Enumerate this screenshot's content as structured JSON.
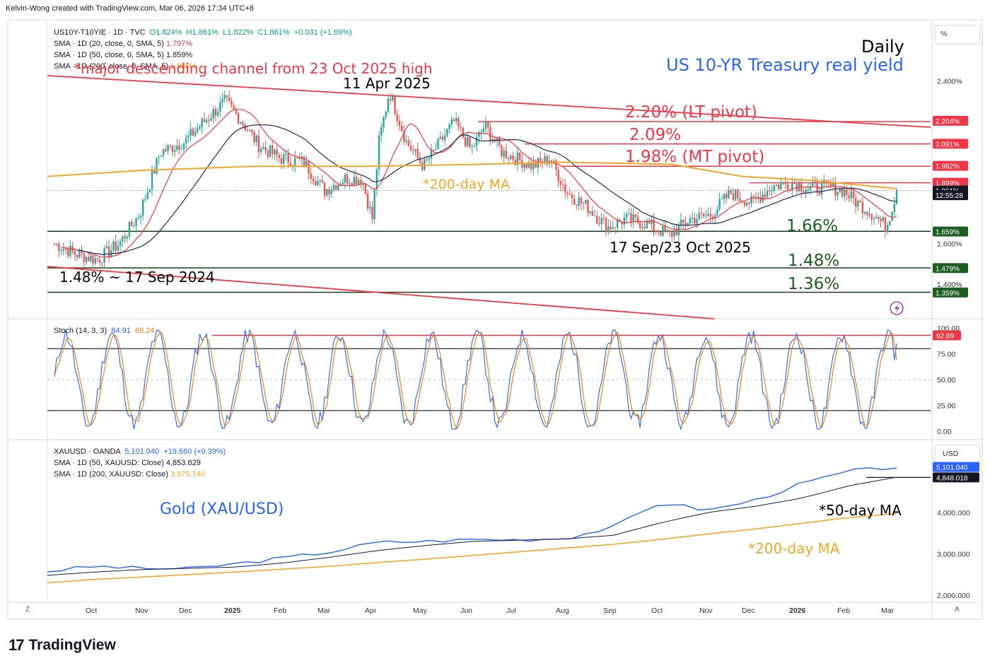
{
  "header": {
    "credit": "Kelvin-Wong created with TradingView.com, Mar 06, 2026 17:34 UTC+8"
  },
  "branding": {
    "logo_text": "TradingView"
  },
  "colors": {
    "red": "#f23645",
    "green": "#1b5e20",
    "blue": "#2962ff",
    "orange": "#f5a623",
    "navy": "#131a4a",
    "candle_up": "#26a69a",
    "candle_down": "#ef5350"
  },
  "main_pane": {
    "legend": {
      "symbol": "US10Y-T10YIE · 1D · TVC",
      "o": "O1.824%",
      "h": "H1.861%",
      "l": "L1.822%",
      "c": "C1.861%",
      "chg": "+0.031 (+1.69%)",
      "sma20_label": "SMA · 1D (20, close, 0, SMA, 5)",
      "sma20_value": "1.797%",
      "sma50_label": "SMA · 1D (50, close, 0, SMA, 5)",
      "sma50_value": "1.859%",
      "sma200_label": "SMA · 1D (200, close, 0, SMA, 5)",
      "sma200_value": "1.868%"
    },
    "unit_label": "%",
    "axis_ticks": [
      "2.400%",
      "1.600%",
      "1.400%"
    ],
    "price_tags": [
      {
        "label": "2.204%",
        "value": 2.204,
        "kind": "red"
      },
      {
        "label": "2.091%",
        "value": 2.091,
        "kind": "red"
      },
      {
        "label": "1.982%",
        "value": 1.982,
        "kind": "red"
      },
      {
        "label": "1.899%",
        "value": 1.899,
        "kind": "red"
      },
      {
        "label": "1.861%",
        "value": 1.861,
        "kind": "dark"
      },
      {
        "label": "12:55:28",
        "value": 1.838,
        "kind": "dark"
      },
      {
        "label": "1.659%",
        "value": 1.659,
        "kind": "green"
      },
      {
        "label": "1.479%",
        "value": 1.479,
        "kind": "green"
      },
      {
        "label": "1.359%",
        "value": 1.359,
        "kind": "green"
      }
    ],
    "annotations": {
      "daily": "Daily",
      "title": "US 10-YR Treasury real yield",
      "channel": "*major descending channel from 23 Oct 2025 high",
      "apr_high": "11 Apr 2025",
      "lt_pivot": "2.20% (LT pivot)",
      "r209": "2.09%",
      "mt_pivot": "1.98% (MT pivot)",
      "ma200": "*200-day MA",
      "s166": "1.66%",
      "sep_oct": "17 Sep/23 Oct 2025",
      "s148": "1.48%",
      "sep2024": "1.48%  ~ 17 Sep 2024",
      "s136": "1.36%"
    }
  },
  "stoch_pane": {
    "legend": {
      "label": "Stoch (14, 3, 3)",
      "k": "84.91",
      "d": "69.24"
    },
    "axis_ticks": [
      "100.00",
      "75.00",
      "50.00",
      "25.00",
      "0.00"
    ],
    "tag": "92.89"
  },
  "gold_pane": {
    "legend": {
      "symbol": "XAUUSD · OANDA",
      "price": "5,101.040",
      "chg": "+19.660 (+0.39%)",
      "sma50_label": "SMA · 1D (50, XAUUSD: Close)",
      "sma50_value": "4,853.829",
      "sma200_label": "SMA · 1D (200, XAUUSD: Close)",
      "sma200_value": "3,975.140"
    },
    "unit_label": "USD",
    "axis_ticks": [
      "4,000.000",
      "3,000.000",
      "2,000.000"
    ],
    "price_tags": [
      {
        "label": "5,101.040",
        "kind": "blue"
      },
      {
        "label": "4,848.018",
        "kind": "dark"
      }
    ],
    "annotations": {
      "title": "Gold (XAU/USD)",
      "ma50": "*50-day MA",
      "ma200": "*200-day MA"
    }
  },
  "time_axis": [
    "Oct",
    "Nov",
    "Dec",
    "2025",
    "Feb",
    "Mar",
    "Apr",
    "May",
    "Jun",
    "Jul",
    "Aug",
    "Sep",
    "Oct",
    "Nov",
    "Dec",
    "2026",
    "Feb",
    "Mar"
  ],
  "axis_buttons": {
    "left": "Z",
    "right": "A"
  },
  "chart_data": [
    {
      "type": "line",
      "title": "US 10-YR Treasury real yield",
      "unit": "%",
      "x": [
        "2024-09",
        "2024-10",
        "2024-11",
        "2024-12",
        "2025-01",
        "2025-02",
        "2025-03",
        "2025-04",
        "2025-05",
        "2025-06",
        "2025-07",
        "2025-08",
        "2025-09",
        "2025-10",
        "2025-11",
        "2025-12",
        "2026-01",
        "2026-02",
        "2026-03"
      ],
      "series": [
        {
          "values": [
            1.57,
            1.62,
            2.05,
            2.12,
            2.28,
            2.13,
            1.92,
            2.1,
            2.05,
            2.18,
            2.02,
            1.98,
            1.75,
            1.69,
            1.78,
            1.88,
            1.9,
            1.8,
            1.861
          ]
        }
      ],
      "horizontal_levels": [
        2.2,
        2.09,
        1.98,
        1.66,
        1.48,
        1.36
      ]
    },
    {
      "type": "line",
      "title": "Stoch (14, 3, 3)",
      "ylim": [
        0,
        100
      ],
      "levels": [
        80,
        50,
        20
      ],
      "last": {
        "k": 84.91,
        "d": 69.24
      }
    },
    {
      "type": "line",
      "title": "Gold (XAU/USD)",
      "x": [
        "2024-09",
        "2024-10",
        "2024-11",
        "2024-12",
        "2025-01",
        "2025-02",
        "2025-03",
        "2025-04",
        "2025-05",
        "2025-06",
        "2025-07",
        "2025-08",
        "2025-09",
        "2025-10",
        "2025-11",
        "2025-12",
        "2026-01",
        "2026-02",
        "2026-03"
      ],
      "series": [
        {
          "name": "XAUUSD",
          "values": [
            2580,
            2700,
            2650,
            2640,
            2760,
            2900,
            3050,
            3280,
            3300,
            3350,
            3340,
            3380,
            3650,
            4250,
            4050,
            4300,
            4700,
            5000,
            5101
          ]
        },
        {
          "name": "50-day MA",
          "values": [
            2480,
            2560,
            2620,
            2650,
            2680,
            2780,
            2920,
            3080,
            3200,
            3300,
            3330,
            3360,
            3450,
            3750,
            4000,
            4150,
            4350,
            4650,
            4854
          ]
        },
        {
          "name": "200-day MA",
          "values": [
            2300,
            2380,
            2440,
            2500,
            2560,
            2630,
            2700,
            2790,
            2870,
            2960,
            3050,
            3140,
            3230,
            3350,
            3480,
            3600,
            3740,
            3880,
            3975
          ]
        }
      ]
    }
  ]
}
